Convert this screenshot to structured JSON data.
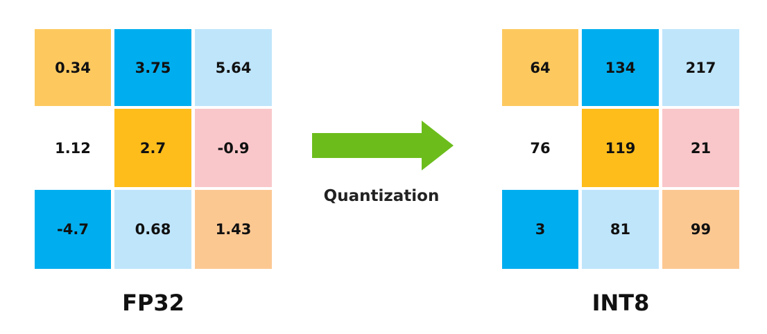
{
  "left": {
    "title": "FP32",
    "rows": [
      [
        "0.34",
        "3.75",
        "5.64"
      ],
      [
        "1.12",
        "2.7",
        "-0.9"
      ],
      [
        "-4.7",
        "0.68",
        "1.43"
      ]
    ]
  },
  "arrow": {
    "label": "Quantization"
  },
  "right": {
    "title": "INT8",
    "rows": [
      [
        "64",
        "134",
        "217"
      ],
      [
        "76",
        "119",
        "21"
      ],
      [
        "3",
        "81",
        "99"
      ]
    ]
  }
}
